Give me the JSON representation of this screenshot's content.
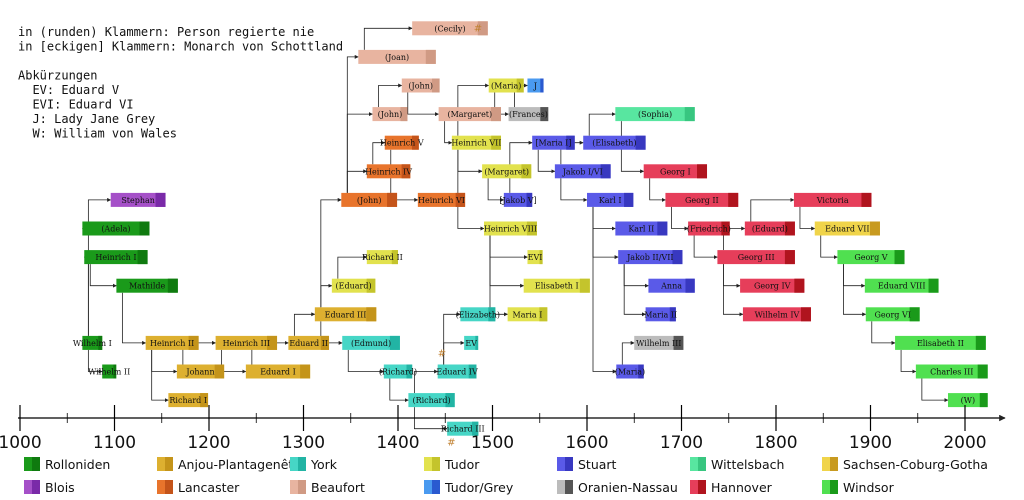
{
  "notes": [
    "in (runden) Klammern: Person regierte nie",
    "in [eckigen] Klammern: Monarch von Schottland",
    "",
    "Abkürzungen",
    "  EV: Eduard V",
    "  EVI: Eduard VI",
    "  J: Lady Jane Grey",
    "  W: William von Wales"
  ],
  "colors": {
    "rolloniden": [
      "#1a9a1a",
      "#0f7a0f"
    ],
    "anjou": [
      "#ddb030",
      "#c4941a"
    ],
    "york": [
      "#46d6c6",
      "#22b4a4"
    ],
    "tudor": [
      "#e2e24e",
      "#c4c42c"
    ],
    "stuart": [
      "#5a5ae8",
      "#3838c0"
    ],
    "wittelsbach": [
      "#58e6a0",
      "#38c680"
    ],
    "saxe": [
      "#f0d44a",
      "#c89a20"
    ],
    "blois": [
      "#a550c8",
      "#7a2aa8"
    ],
    "lancaster": [
      "#e8742c",
      "#c4541a"
    ],
    "beaufort": [
      "#e8b4a0",
      "#d09a84"
    ],
    "tudorgrey": [
      "#4a9af0",
      "#2a5ad0"
    ],
    "oranien": [
      "#bcbcbc",
      "#555555"
    ],
    "hannover": [
      "#e63e5a",
      "#b0141e"
    ],
    "windsor": [
      "#50e050",
      "#1a9a1a"
    ]
  },
  "axis": {
    "ticks": [
      "1000",
      "1100",
      "1200",
      "1300",
      "1400",
      "1500",
      "1600",
      "1700",
      "1800",
      "1900",
      "2000"
    ],
    "tick_values": [
      1000,
      1100,
      1200,
      1300,
      1400,
      1500,
      1600,
      1700,
      1800,
      1900,
      2000
    ]
  },
  "special_marks": [
    "#",
    "#",
    "#"
  ],
  "people": [
    {
      "id": "wilhelm1",
      "label": "Wilhelm I",
      "start": 1066,
      "end": 1087,
      "house": "rolloniden",
      "row": 12
    },
    {
      "id": "wilhelm2",
      "label": "Wilhelm II",
      "start": 1087,
      "end": 1100,
      "house": "rolloniden",
      "row": 13
    },
    {
      "id": "adela",
      "label": "(Adela)",
      "start": 1066,
      "end": 1137,
      "house": "rolloniden",
      "row": 8
    },
    {
      "id": "heinrich1",
      "label": "Heinrich I",
      "start": 1068,
      "end": 1135,
      "house": "rolloniden",
      "row": 9
    },
    {
      "id": "stephan",
      "label": "Stephan",
      "start": 1096,
      "end": 1154,
      "house": "blois",
      "row": 7
    },
    {
      "id": "mathilde",
      "label": "Mathilde",
      "start": 1102,
      "end": 1167,
      "house": "rolloniden",
      "row": 10
    },
    {
      "id": "heinrich2",
      "label": "Heinrich II",
      "start": 1133,
      "end": 1189,
      "house": "anjou",
      "row": 12
    },
    {
      "id": "johann",
      "label": "Johann",
      "start": 1166,
      "end": 1216,
      "house": "anjou",
      "row": 13
    },
    {
      "id": "richard1",
      "label": "Richard I",
      "start": 1157,
      "end": 1199,
      "house": "anjou",
      "row": 14
    },
    {
      "id": "heinrich3",
      "label": "Heinrich III",
      "start": 1207,
      "end": 1272,
      "house": "anjou",
      "row": 12
    },
    {
      "id": "eduard1",
      "label": "Eduard I",
      "start": 1239,
      "end": 1307,
      "house": "anjou",
      "row": 13
    },
    {
      "id": "eduard2",
      "label": "Eduard II",
      "start": 1284,
      "end": 1327,
      "house": "anjou",
      "row": 12
    },
    {
      "id": "eduard3",
      "label": "Eduard III",
      "start": 1312,
      "end": 1377,
      "house": "anjou",
      "row": 11
    },
    {
      "id": "eduard_bp",
      "label": "(Eduard)",
      "start": 1330,
      "end": 1376,
      "house": "tudor",
      "row": 10
    },
    {
      "id": "richard2",
      "label": "Richard II",
      "start": 1367,
      "end": 1400,
      "house": "tudor",
      "row": 9
    },
    {
      "id": "edmund",
      "label": "(Edmund)",
      "start": 1341,
      "end": 1402,
      "house": "york",
      "row": 12
    },
    {
      "id": "richard_c",
      "label": "(Richard)",
      "start": 1385,
      "end": 1415,
      "house": "york",
      "row": 13
    },
    {
      "id": "richard_y",
      "label": "(Richard)",
      "start": 1411,
      "end": 1460,
      "house": "york",
      "row": 14
    },
    {
      "id": "eduard4",
      "label": "Eduard IV",
      "start": 1442,
      "end": 1483,
      "house": "york",
      "row": 13
    },
    {
      "id": "ev",
      "label": "EV",
      "start": 1470,
      "end": 1483,
      "house": "york",
      "row": 12
    },
    {
      "id": "richard3",
      "label": "Richard III",
      "start": 1452,
      "end": 1485,
      "house": "york",
      "row": 15
    },
    {
      "id": "elizabeth_y",
      "label": "(Elizabeth)",
      "start": 1466,
      "end": 1503,
      "house": "york",
      "row": 11
    },
    {
      "id": "john_g",
      "label": "(John)",
      "start": 1340,
      "end": 1399,
      "house": "lancaster",
      "row": 7
    },
    {
      "id": "heinrich4",
      "label": "Heinrich IV",
      "start": 1367,
      "end": 1413,
      "house": "lancaster",
      "row": 6
    },
    {
      "id": "heinrich5",
      "label": "Heinrich V",
      "start": 1386,
      "end": 1422,
      "house": "lancaster",
      "row": 5
    },
    {
      "id": "heinrich6",
      "label": "Heinrich VI",
      "start": 1421,
      "end": 1471,
      "house": "lancaster",
      "row": 7
    },
    {
      "id": "john_b1",
      "label": "(John)",
      "start": 1373,
      "end": 1410,
      "house": "beaufort",
      "row": 4
    },
    {
      "id": "john_b2",
      "label": "(John)",
      "start": 1404,
      "end": 1444,
      "house": "beaufort",
      "row": 3
    },
    {
      "id": "joan",
      "label": "(Joan)",
      "start": 1358,
      "end": 1440,
      "house": "beaufort",
      "row": 2
    },
    {
      "id": "cecily",
      "label": "(Cecily)",
      "start": 1415,
      "end": 1495,
      "house": "beaufort",
      "row": 1
    },
    {
      "id": "margaret_b",
      "label": "(Margaret)",
      "start": 1443,
      "end": 1509,
      "house": "beaufort",
      "row": 4
    },
    {
      "id": "heinrich7",
      "label": "Heinrich VII",
      "start": 1457,
      "end": 1509,
      "house": "tudor",
      "row": 5
    },
    {
      "id": "heinrich8",
      "label": "Heinrich VIII",
      "start": 1491,
      "end": 1547,
      "house": "tudor",
      "row": 8
    },
    {
      "id": "margaret_t",
      "label": "(Margaret)",
      "start": 1489,
      "end": 1541,
      "house": "tudor",
      "row": 6
    },
    {
      "id": "maria_t",
      "label": "(Maria)",
      "start": 1496,
      "end": 1533,
      "house": "tudor",
      "row": 3
    },
    {
      "id": "frances",
      "label": "(Frances)",
      "start": 1517,
      "end": 1559,
      "house": "oranien",
      "row": 4
    },
    {
      "id": "j",
      "label": "J",
      "start": 1537,
      "end": 1554,
      "house": "tudorgrey",
      "row": 3
    },
    {
      "id": "jakob5",
      "label": "[Jakob V]",
      "start": 1512,
      "end": 1542,
      "house": "stuart",
      "row": 7
    },
    {
      "id": "evi",
      "label": "EVI",
      "start": 1537,
      "end": 1553,
      "house": "tudor",
      "row": 9
    },
    {
      "id": "elisabeth1",
      "label": "Elisabeth I",
      "start": 1533,
      "end": 1603,
      "house": "tudor",
      "row": 10
    },
    {
      "id": "maria1",
      "label": "Maria I",
      "start": 1516,
      "end": 1558,
      "house": "tudor",
      "row": 11
    },
    {
      "id": "maria_s",
      "label": "[Maria I]",
      "start": 1542,
      "end": 1587,
      "house": "stuart",
      "row": 5
    },
    {
      "id": "jakob1",
      "label": "Jakob I/VI",
      "start": 1566,
      "end": 1625,
      "house": "stuart",
      "row": 6
    },
    {
      "id": "elisabeth_s",
      "label": "(Elisabeth)",
      "start": 1596,
      "end": 1662,
      "house": "stuart",
      "row": 5
    },
    {
      "id": "sophia",
      "label": "(Sophia)",
      "start": 1630,
      "end": 1714,
      "house": "wittelsbach",
      "row": 4
    },
    {
      "id": "karl1",
      "label": "Karl I",
      "start": 1600,
      "end": 1649,
      "house": "stuart",
      "row": 7
    },
    {
      "id": "karl2",
      "label": "Karl II",
      "start": 1630,
      "end": 1685,
      "house": "stuart",
      "row": 8
    },
    {
      "id": "jakob2",
      "label": "Jakob II/VII",
      "start": 1633,
      "end": 1701,
      "house": "stuart",
      "row": 9
    },
    {
      "id": "anna",
      "label": "Anna",
      "start": 1665,
      "end": 1714,
      "house": "stuart",
      "row": 10
    },
    {
      "id": "maria2",
      "label": "Maria II",
      "start": 1662,
      "end": 1694,
      "house": "stuart",
      "row": 11
    },
    {
      "id": "maria_o",
      "label": "(Maria)",
      "start": 1631,
      "end": 1660,
      "house": "stuart",
      "row": 13
    },
    {
      "id": "wilhelm3",
      "label": "Wilhelm III",
      "start": 1650,
      "end": 1702,
      "house": "oranien",
      "row": 12
    },
    {
      "id": "georg1",
      "label": "Georg I",
      "start": 1660,
      "end": 1727,
      "house": "hannover",
      "row": 6
    },
    {
      "id": "georg2",
      "label": "Georg II",
      "start": 1683,
      "end": 1760,
      "house": "hannover",
      "row": 7
    },
    {
      "id": "friedrich",
      "label": "(Friedrich)",
      "start": 1707,
      "end": 1751,
      "house": "hannover",
      "row": 8
    },
    {
      "id": "georg3",
      "label": "Georg III",
      "start": 1738,
      "end": 1820,
      "house": "hannover",
      "row": 9
    },
    {
      "id": "georg4",
      "label": "Georg IV",
      "start": 1762,
      "end": 1830,
      "house": "hannover",
      "row": 10
    },
    {
      "id": "wilhelm4",
      "label": "Wilhelm IV",
      "start": 1765,
      "end": 1837,
      "house": "hannover",
      "row": 11
    },
    {
      "id": "eduard_h",
      "label": "(Eduard)",
      "start": 1767,
      "end": 1820,
      "house": "hannover",
      "row": 8
    },
    {
      "id": "victoria",
      "label": "Victoria",
      "start": 1819,
      "end": 1901,
      "house": "hannover",
      "row": 7
    },
    {
      "id": "eduard7",
      "label": "Eduard VII",
      "start": 1841,
      "end": 1910,
      "house": "saxe",
      "row": 8
    },
    {
      "id": "georg5",
      "label": "Georg V",
      "start": 1865,
      "end": 1936,
      "house": "windsor",
      "row": 9
    },
    {
      "id": "eduard8",
      "label": "Eduard VIII",
      "start": 1894,
      "end": 1972,
      "house": "windsor",
      "row": 10
    },
    {
      "id": "georg6",
      "label": "Georg VI",
      "start": 1895,
      "end": 1952,
      "house": "windsor",
      "row": 11
    },
    {
      "id": "elisabeth2",
      "label": "Elisabeth II",
      "start": 1926,
      "end": 2022,
      "house": "windsor",
      "row": 12
    },
    {
      "id": "charles3",
      "label": "Charles III",
      "start": 1948,
      "end": 2024,
      "house": "windsor",
      "row": 13
    },
    {
      "id": "w",
      "label": "(W)",
      "start": 1982,
      "end": 2024,
      "house": "windsor",
      "row": 14
    }
  ],
  "links": [
    [
      "wilhelm1",
      "adela"
    ],
    [
      "wilhelm1",
      "heinrich1"
    ],
    [
      "wilhelm1",
      "wilhelm2"
    ],
    [
      "adela",
      "stephan"
    ],
    [
      "heinrich1",
      "mathilde"
    ],
    [
      "mathilde",
      "heinrich2"
    ],
    [
      "heinrich2",
      "johann"
    ],
    [
      "heinrich2",
      "richard1"
    ],
    [
      "johann",
      "heinrich3"
    ],
    [
      "heinrich3",
      "eduard1"
    ],
    [
      "eduard1",
      "eduard2"
    ],
    [
      "eduard2",
      "eduard3"
    ],
    [
      "eduard3",
      "eduard_bp"
    ],
    [
      "eduard_bp",
      "richard2"
    ],
    [
      "eduard3",
      "john_g"
    ],
    [
      "eduard3",
      "edmund"
    ],
    [
      "john_g",
      "heinrich4"
    ],
    [
      "john_g",
      "joan"
    ],
    [
      "john_g",
      "john_b1"
    ],
    [
      "heinrich4",
      "heinrich5"
    ],
    [
      "heinrich5",
      "heinrich6"
    ],
    [
      "john_b1",
      "john_b2"
    ],
    [
      "joan",
      "cecily"
    ],
    [
      "john_b2",
      "margaret_b"
    ],
    [
      "margaret_b",
      "heinrich7"
    ],
    [
      "edmund",
      "richard_c"
    ],
    [
      "richard_c",
      "richard_y"
    ],
    [
      "richard_y",
      "eduard4"
    ],
    [
      "richard_y",
      "richard3"
    ],
    [
      "eduard4",
      "ev"
    ],
    [
      "eduard4",
      "elizabeth_y"
    ],
    [
      "heinrich7",
      "heinrich8"
    ],
    [
      "heinrich7",
      "margaret_t"
    ],
    [
      "heinrich7",
      "maria_t"
    ],
    [
      "maria_t",
      "frances"
    ],
    [
      "frances",
      "j"
    ],
    [
      "margaret_t",
      "jakob5"
    ],
    [
      "heinrich8",
      "evi"
    ],
    [
      "heinrich8",
      "elisabeth1"
    ],
    [
      "heinrich8",
      "maria1"
    ],
    [
      "jakob5",
      "maria_s"
    ],
    [
      "maria_s",
      "jakob1"
    ],
    [
      "jakob1",
      "elisabeth_s"
    ],
    [
      "elisabeth_s",
      "sophia"
    ],
    [
      "jakob1",
      "karl1"
    ],
    [
      "karl1",
      "karl2"
    ],
    [
      "karl1",
      "jakob2"
    ],
    [
      "karl1",
      "maria_o"
    ],
    [
      "jakob2",
      "anna"
    ],
    [
      "jakob2",
      "maria2"
    ],
    [
      "maria_o",
      "wilhelm3"
    ],
    [
      "sophia",
      "georg1"
    ],
    [
      "georg1",
      "georg2"
    ],
    [
      "georg2",
      "friedrich"
    ],
    [
      "friedrich",
      "georg3"
    ],
    [
      "georg3",
      "georg4"
    ],
    [
      "georg3",
      "wilhelm4"
    ],
    [
      "georg3",
      "eduard_h"
    ],
    [
      "eduard_h",
      "victoria"
    ],
    [
      "victoria",
      "eduard7"
    ],
    [
      "eduard7",
      "georg5"
    ],
    [
      "georg5",
      "eduard8"
    ],
    [
      "georg5",
      "georg6"
    ],
    [
      "georg6",
      "elisabeth2"
    ],
    [
      "elisabeth2",
      "charles3"
    ],
    [
      "charles3",
      "w"
    ]
  ],
  "legend": [
    {
      "label": "Rolloniden",
      "house": "rolloniden"
    },
    {
      "label": "Anjou-Plantagenêt",
      "house": "anjou"
    },
    {
      "label": "York",
      "house": "york"
    },
    {
      "label": "Tudor",
      "house": "tudor"
    },
    {
      "label": "Stuart",
      "house": "stuart"
    },
    {
      "label": "Wittelsbach",
      "house": "wittelsbach"
    },
    {
      "label": "Sachsen-Coburg-Gotha",
      "house": "saxe"
    },
    {
      "label": "Blois",
      "house": "blois"
    },
    {
      "label": "Lancaster",
      "house": "lancaster"
    },
    {
      "label": "Beaufort",
      "house": "beaufort"
    },
    {
      "label": "Tudor/Grey",
      "house": "tudorgrey"
    },
    {
      "label": "Oranien-Nassau",
      "house": "oranien"
    },
    {
      "label": "Hannover",
      "house": "hannover"
    },
    {
      "label": "Windsor",
      "house": "windsor"
    }
  ]
}
